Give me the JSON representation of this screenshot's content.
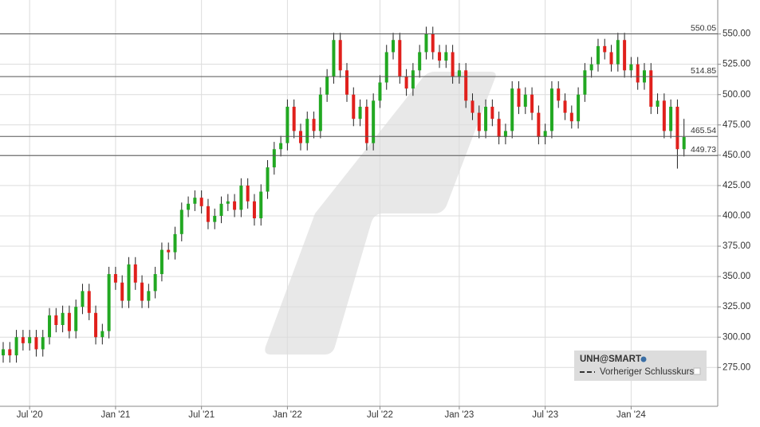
{
  "chart_data": {
    "type": "candlestick",
    "categories": [
      null,
      null,
      null,
      null,
      "Jul '20",
      null,
      null,
      null,
      null,
      null,
      null,
      null,
      null,
      null,
      null,
      null,
      null,
      "Jan '21",
      null,
      null,
      null,
      null,
      null,
      null,
      null,
      null,
      null,
      null,
      null,
      null,
      "Jul '21",
      null,
      null,
      null,
      null,
      null,
      null,
      null,
      null,
      null,
      null,
      null,
      null,
      "Jan '22",
      null,
      null,
      null,
      null,
      null,
      null,
      null,
      null,
      null,
      null,
      null,
      null,
      null,
      "Jul '22",
      null,
      null,
      null,
      null,
      null,
      null,
      null,
      null,
      null,
      null,
      null,
      "Jan '23",
      null,
      null,
      null,
      null,
      null,
      null,
      null,
      null,
      null,
      null,
      null,
      null,
      "Jul '23",
      null,
      null,
      null,
      null,
      null,
      null,
      null,
      null,
      null,
      null,
      null,
      null,
      "Jan '24",
      null,
      null,
      null,
      null,
      null,
      null,
      null,
      null
    ],
    "open": [
      285,
      290,
      285,
      300,
      295,
      300,
      290,
      300,
      318,
      310,
      320,
      305,
      325,
      338,
      320,
      300,
      305,
      352,
      345,
      330,
      360,
      345,
      330,
      338,
      352,
      372,
      370,
      385,
      405,
      410,
      415,
      408,
      395,
      400,
      410,
      412,
      405,
      425,
      412,
      398,
      420,
      440,
      455,
      460,
      490,
      470,
      460,
      480,
      470,
      500,
      515,
      545,
      520,
      500,
      480,
      490,
      460,
      495,
      510,
      535,
      545,
      515,
      505,
      520,
      535,
      550,
      535,
      528,
      535,
      515,
      520,
      495,
      485,
      470,
      490,
      480,
      465,
      470,
      505,
      490,
      500,
      485,
      465,
      470,
      505,
      495,
      485,
      478,
      500,
      520,
      525,
      540,
      535,
      525,
      545,
      520,
      525,
      510,
      520,
      490,
      495,
      470,
      490,
      455
    ],
    "high": [
      296,
      296,
      306,
      306,
      306,
      306,
      306,
      324,
      324,
      326,
      326,
      331,
      344,
      344,
      326,
      311,
      358,
      358,
      351,
      366,
      366,
      351,
      344,
      358,
      378,
      378,
      391,
      411,
      416,
      421,
      421,
      414,
      406,
      416,
      418,
      418,
      431,
      431,
      418,
      426,
      446,
      461,
      466,
      496,
      496,
      476,
      486,
      486,
      506,
      521,
      551,
      551,
      526,
      506,
      496,
      496,
      501,
      516,
      541,
      551,
      551,
      521,
      526,
      541,
      556,
      556,
      541,
      541,
      541,
      526,
      526,
      501,
      491,
      496,
      496,
      486,
      476,
      511,
      511,
      506,
      506,
      491,
      476,
      511,
      511,
      501,
      491,
      506,
      526,
      531,
      546,
      546,
      541,
      551,
      551,
      531,
      531,
      526,
      526,
      501,
      501,
      496,
      496,
      480
    ],
    "low": [
      279,
      279,
      279,
      289,
      289,
      284,
      284,
      294,
      304,
      304,
      299,
      299,
      319,
      314,
      294,
      294,
      299,
      339,
      324,
      324,
      339,
      324,
      324,
      332,
      346,
      364,
      364,
      379,
      399,
      404,
      402,
      389,
      389,
      394,
      404,
      399,
      399,
      406,
      392,
      392,
      414,
      434,
      449,
      454,
      464,
      454,
      454,
      464,
      464,
      494,
      509,
      514,
      494,
      474,
      474,
      454,
      454,
      489,
      504,
      529,
      509,
      499,
      499,
      514,
      529,
      529,
      522,
      522,
      509,
      509,
      489,
      479,
      464,
      464,
      474,
      459,
      459,
      464,
      484,
      484,
      479,
      459,
      459,
      464,
      489,
      479,
      472,
      472,
      494,
      514,
      519,
      529,
      519,
      519,
      514,
      514,
      504,
      504,
      484,
      484,
      464,
      464,
      439,
      449
    ],
    "close": [
      290,
      285,
      300,
      295,
      300,
      290,
      300,
      318,
      310,
      320,
      305,
      325,
      338,
      320,
      300,
      305,
      352,
      345,
      330,
      360,
      345,
      330,
      338,
      352,
      372,
      370,
      385,
      405,
      410,
      415,
      408,
      395,
      400,
      410,
      412,
      405,
      425,
      412,
      398,
      420,
      440,
      455,
      460,
      490,
      470,
      460,
      480,
      470,
      500,
      515,
      545,
      520,
      500,
      480,
      490,
      460,
      495,
      510,
      535,
      545,
      515,
      505,
      520,
      535,
      550,
      535,
      528,
      535,
      515,
      520,
      495,
      485,
      470,
      490,
      480,
      465,
      470,
      505,
      490,
      500,
      485,
      465,
      470,
      505,
      495,
      485,
      478,
      500,
      520,
      525,
      540,
      535,
      525,
      545,
      520,
      525,
      510,
      520,
      490,
      495,
      470,
      490,
      455,
      465
    ],
    "up_color": "#22a822",
    "down_color": "#e0201c",
    "levels": [
      550.05,
      514.85,
      465.54,
      449.73
    ],
    "ylim": [
      243,
      578
    ],
    "yticks": [
      {
        "value": 275,
        "label": "275.00"
      },
      {
        "value": 300,
        "label": "300.00"
      },
      {
        "value": 325,
        "label": "325.00"
      },
      {
        "value": 350,
        "label": "350.00"
      },
      {
        "value": 375,
        "label": "375.00"
      },
      {
        "value": 400,
        "label": "400.00"
      },
      {
        "value": 425,
        "label": "425.00"
      },
      {
        "value": 450,
        "label": "450.00"
      },
      {
        "value": 475,
        "label": "475.00"
      },
      {
        "value": 500,
        "label": "500.00"
      },
      {
        "value": 525,
        "label": "525.00"
      },
      {
        "value": 550,
        "label": "550.00"
      }
    ],
    "grid": true,
    "legend": {
      "symbol": "UNH@SMART",
      "entry": "Vorheriger Schlusskurs"
    }
  }
}
